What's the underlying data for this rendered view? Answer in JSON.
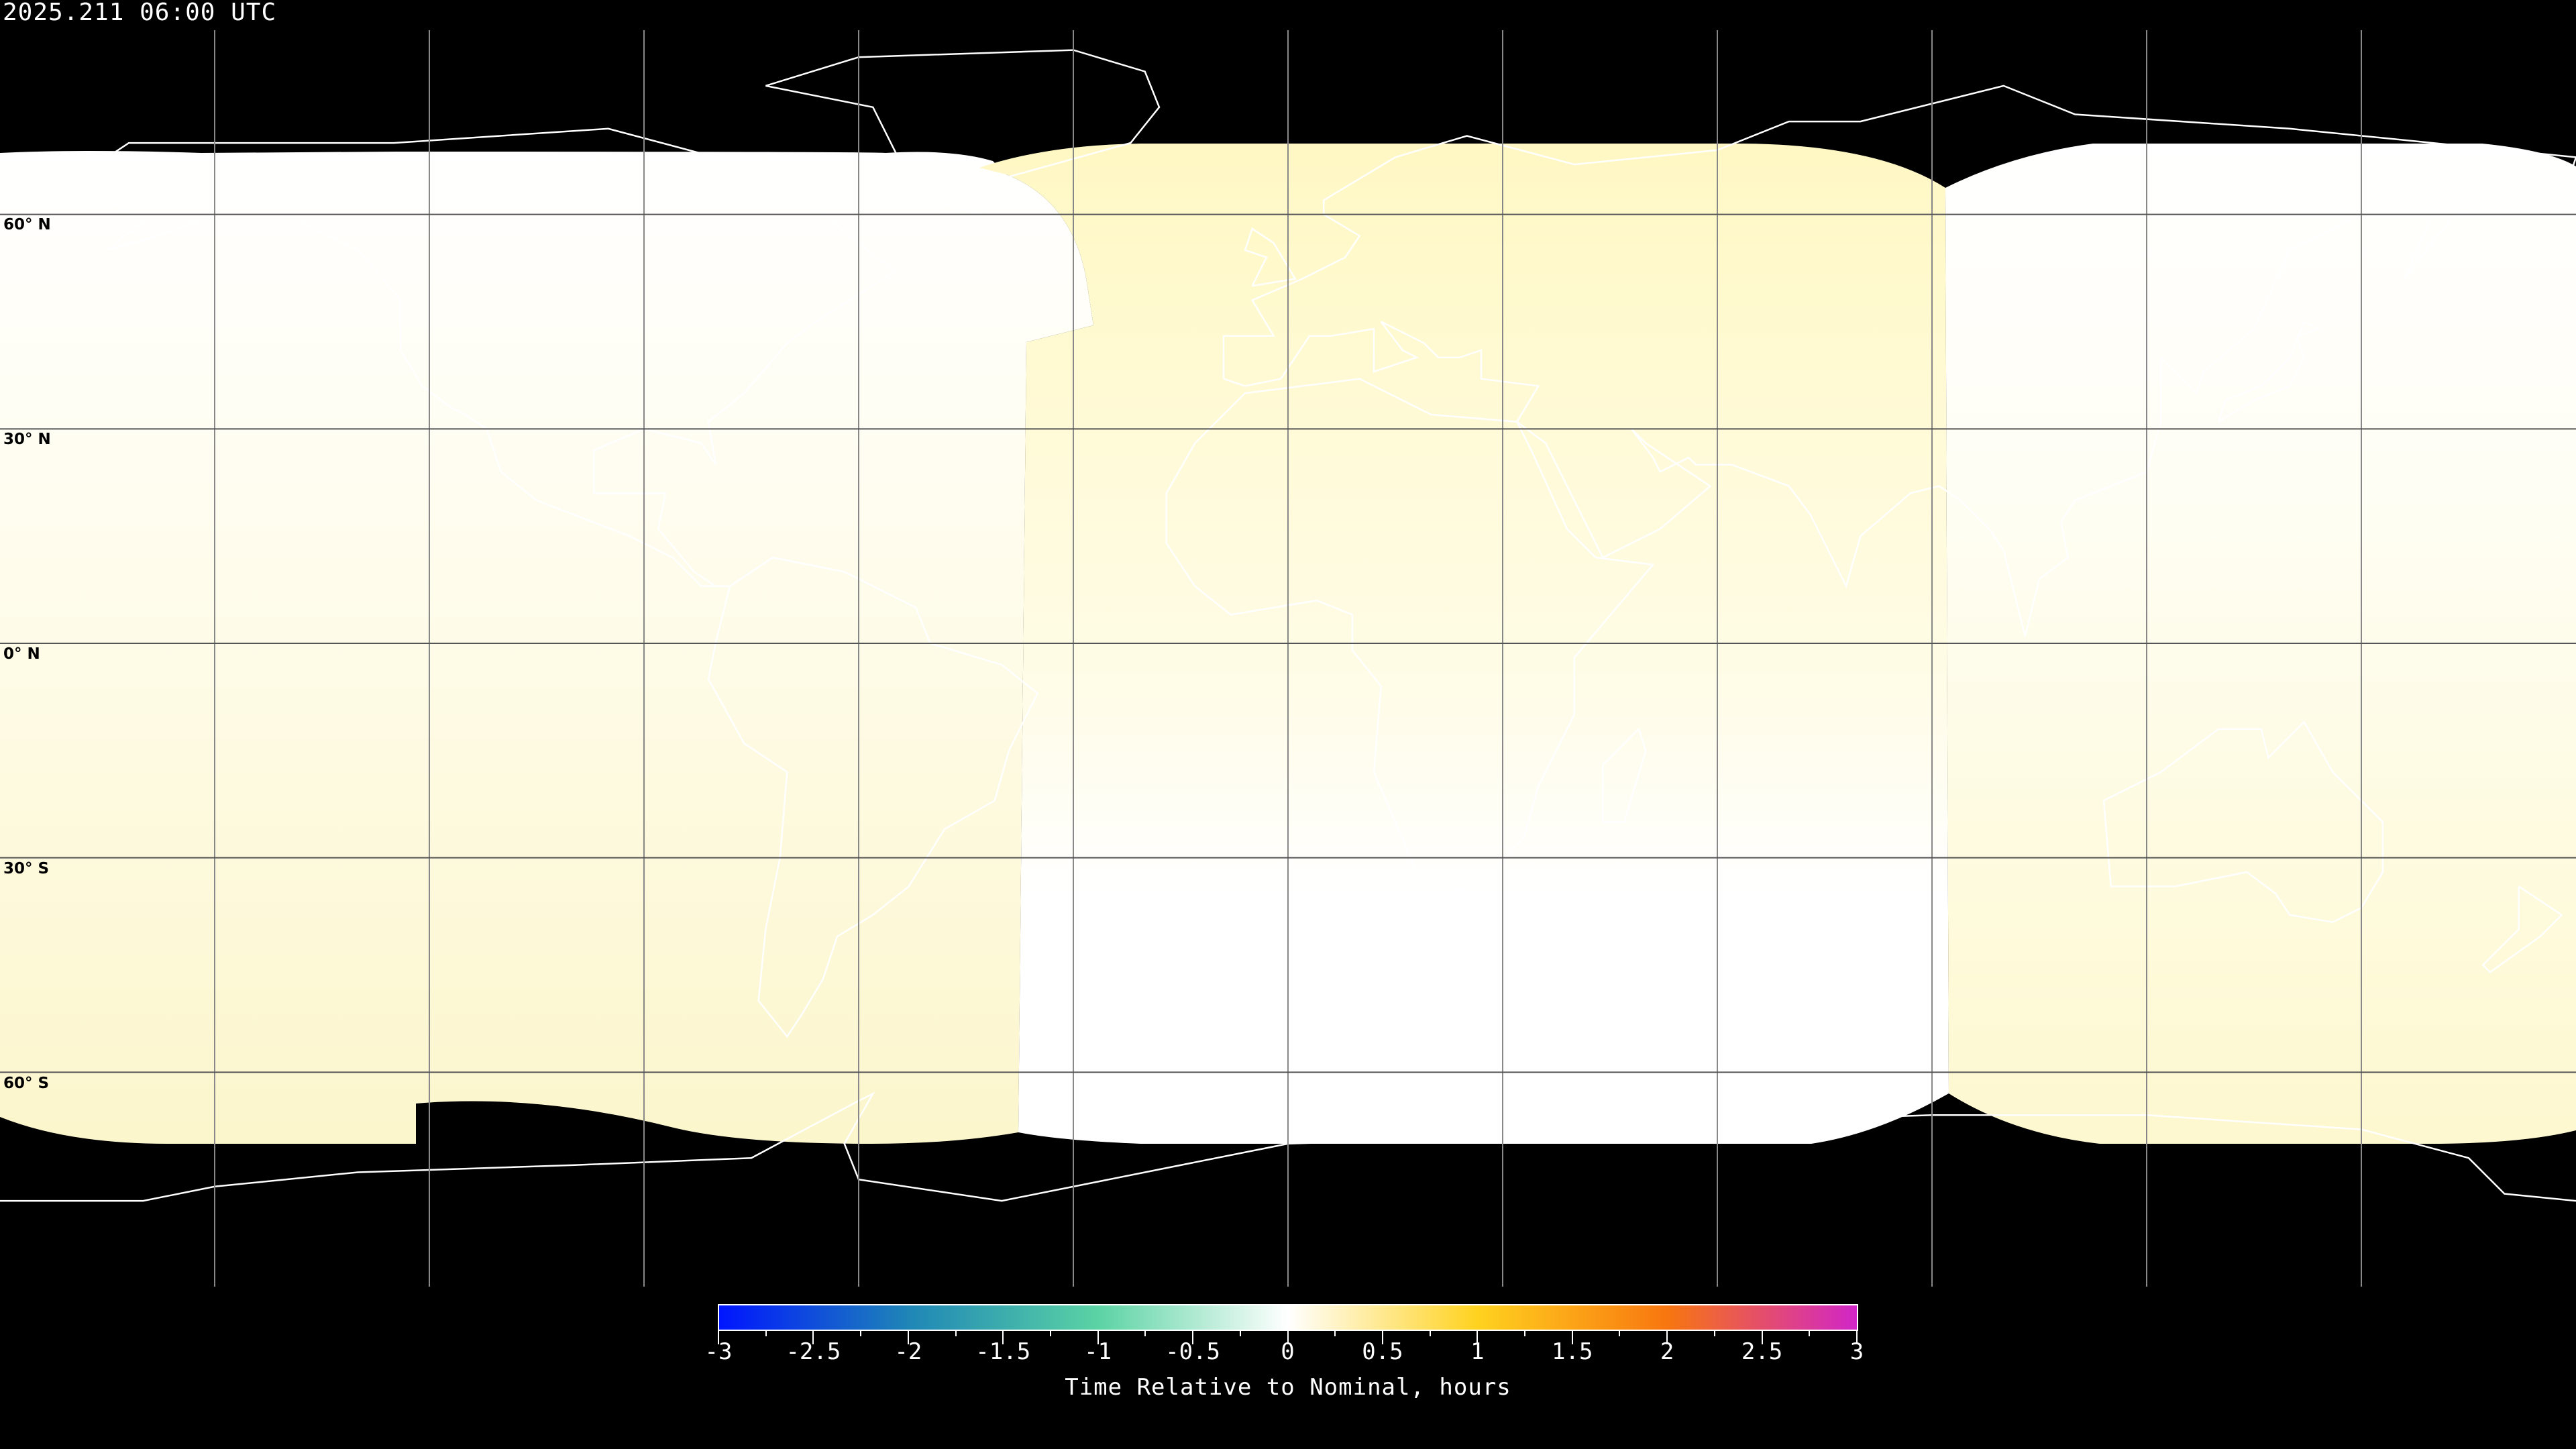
{
  "header": {
    "timestamp": "2025.211 06:00 UTC"
  },
  "map": {
    "projection": "equirectangular",
    "no_data_color": "#000000",
    "grid_spacing_degrees": 30,
    "latitude_labels": [
      "60° N",
      "30° N",
      "0° N",
      "30° S",
      "60° S"
    ]
  },
  "colorbar": {
    "label": "Time Relative to Nominal, hours",
    "range": [
      -3,
      3
    ],
    "ticks": [
      "-3",
      "-2.5",
      "-2",
      "-1.5",
      "-1",
      "-0.5",
      "0",
      "0.5",
      "1",
      "1.5",
      "2",
      "2.5",
      "3"
    ],
    "stops": [
      "#0015ff",
      "#1f86b6",
      "#5cd3a4",
      "#ffffff",
      "#ffd21f",
      "#f8760f",
      "#d126c8"
    ]
  }
}
